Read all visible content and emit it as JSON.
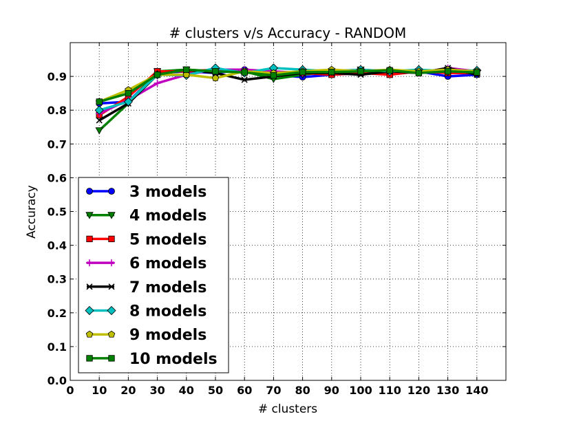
{
  "chart_data": {
    "type": "line",
    "title": "# clusters v/s Accuracy - RANDOM",
    "xlabel": "# clusters",
    "ylabel": "Accuracy",
    "xlim": [
      0,
      150
    ],
    "ylim": [
      0.0,
      1.0
    ],
    "xticks": [
      0,
      10,
      20,
      30,
      40,
      50,
      60,
      70,
      80,
      90,
      100,
      110,
      120,
      130,
      140
    ],
    "yticks": [
      0.0,
      0.1,
      0.2,
      0.3,
      0.4,
      0.5,
      0.6,
      0.7,
      0.8,
      0.9
    ],
    "xtick_labels": [
      "0",
      "10",
      "20",
      "30",
      "40",
      "50",
      "60",
      "70",
      "80",
      "90",
      "100",
      "110",
      "120",
      "130",
      "140"
    ],
    "ytick_labels": [
      "0.0",
      "0.1",
      "0.2",
      "0.3",
      "0.4",
      "0.5",
      "0.6",
      "0.7",
      "0.8",
      "0.9"
    ],
    "grid": true,
    "legend_position": "lower-left",
    "x": [
      10,
      20,
      30,
      40,
      50,
      60,
      70,
      80,
      90,
      100,
      110,
      120,
      130,
      140
    ],
    "series": [
      {
        "name": "3 models",
        "color": "#0000ff",
        "marker": "circle",
        "values": [
          0.82,
          0.825,
          0.91,
          0.915,
          0.91,
          0.92,
          0.905,
          0.898,
          0.905,
          0.91,
          0.91,
          0.915,
          0.9,
          0.905
        ]
      },
      {
        "name": "4 models",
        "color": "#008000",
        "marker": "triangle-down",
        "values": [
          0.74,
          0.82,
          0.915,
          0.92,
          0.915,
          0.915,
          0.892,
          0.905,
          0.915,
          0.92,
          0.91,
          0.915,
          0.92,
          0.91
        ]
      },
      {
        "name": "5 models",
        "color": "#ff0000",
        "marker": "square",
        "values": [
          0.785,
          0.84,
          0.915,
          0.915,
          0.92,
          0.915,
          0.91,
          0.91,
          0.905,
          0.91,
          0.905,
          0.915,
          0.91,
          0.91
        ]
      },
      {
        "name": "6 models",
        "color": "#bf00bf",
        "marker": "plus",
        "values": [
          0.79,
          0.83,
          0.88,
          0.905,
          0.92,
          0.92,
          0.915,
          0.91,
          0.915,
          0.92,
          0.915,
          0.91,
          0.925,
          0.915
        ]
      },
      {
        "name": "7 models",
        "color": "#000000",
        "marker": "x",
        "values": [
          0.77,
          0.82,
          0.905,
          0.92,
          0.91,
          0.89,
          0.9,
          0.91,
          0.91,
          0.905,
          0.915,
          0.91,
          0.925,
          0.905
        ]
      },
      {
        "name": "8 models",
        "color": "#00bfbf",
        "marker": "diamond",
        "values": [
          0.8,
          0.825,
          0.905,
          0.903,
          0.925,
          0.91,
          0.925,
          0.92,
          0.915,
          0.92,
          0.915,
          0.92,
          0.915,
          0.918
        ]
      },
      {
        "name": "9 models",
        "color": "#bfbf00",
        "marker": "pentagon",
        "values": [
          0.825,
          0.86,
          0.905,
          0.905,
          0.895,
          0.915,
          0.91,
          0.915,
          0.92,
          0.915,
          0.92,
          0.915,
          0.92,
          0.915
        ]
      },
      {
        "name": "10 models",
        "color": "#007f00",
        "marker": "square",
        "values": [
          0.825,
          0.85,
          0.905,
          0.92,
          0.915,
          0.912,
          0.903,
          0.913,
          0.913,
          0.915,
          0.918,
          0.91,
          0.915,
          0.912
        ]
      }
    ]
  }
}
